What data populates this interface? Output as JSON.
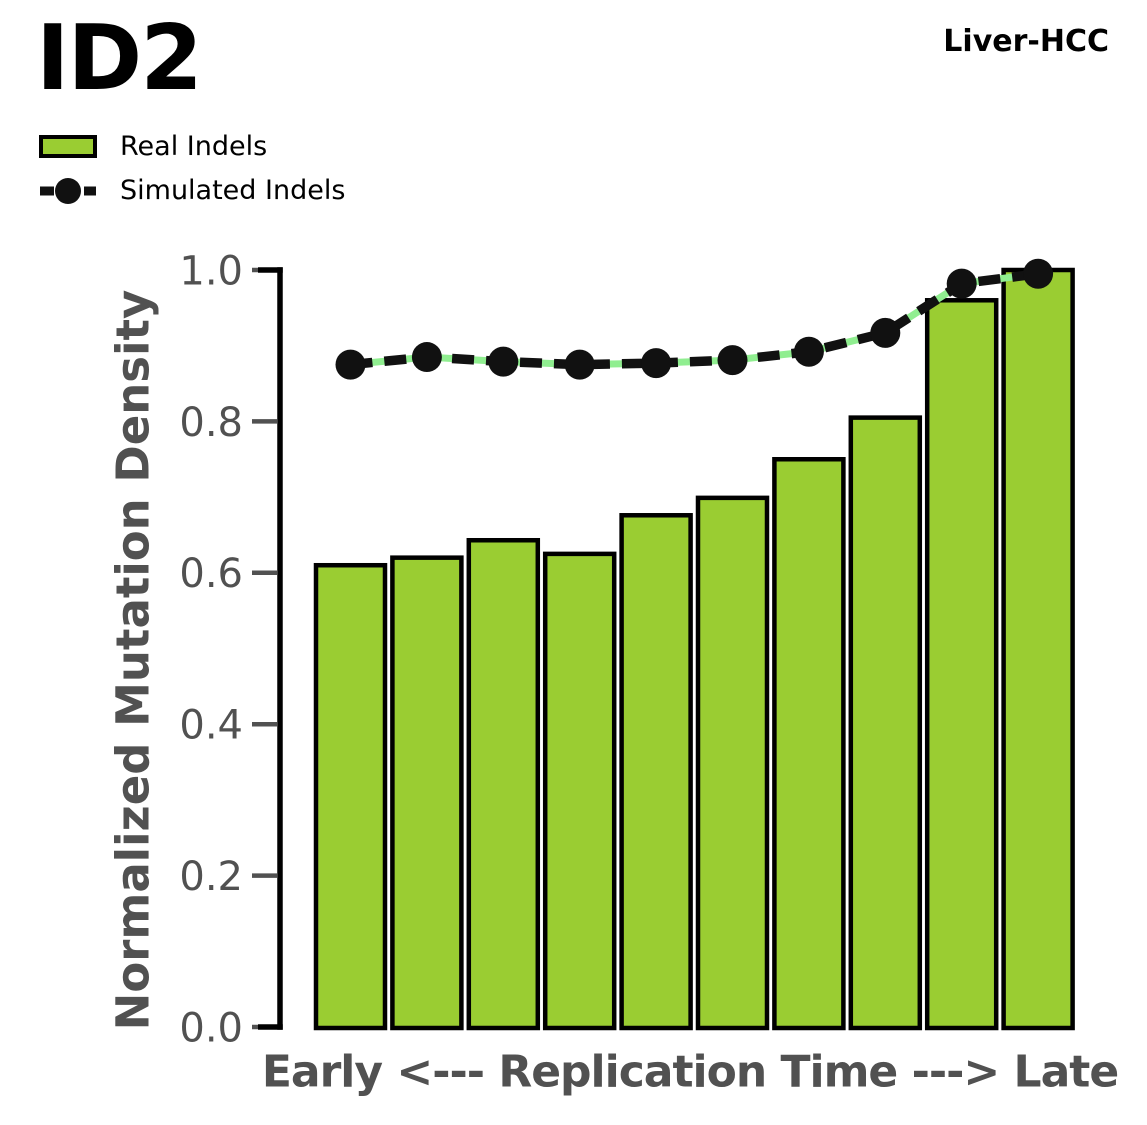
{
  "title": "ID2",
  "corner_label": "Liver-HCC",
  "legend": {
    "items": [
      {
        "label": "Real Indels"
      },
      {
        "label": "Simulated Indels"
      }
    ]
  },
  "colors": {
    "bar_fill": "#9ACD32",
    "bar_edge": "#000000",
    "line_color": "#111111",
    "line_gap_dash": "#90EE90",
    "marker_color": "#111111",
    "axis_text": "#515151",
    "spine_color": "#000000",
    "background": "#FFFFFF",
    "title_text": "#000000"
  },
  "chart_data": {
    "type": "bar",
    "title": "ID2",
    "subtitle": "Liver-HCC",
    "x": [
      1,
      2,
      3,
      4,
      5,
      6,
      7,
      8,
      9,
      10
    ],
    "series": [
      {
        "name": "Real Indels",
        "type": "bar",
        "values": [
          0.61,
          0.62,
          0.643,
          0.625,
          0.676,
          0.699,
          0.75,
          0.805,
          0.96,
          1.0
        ]
      },
      {
        "name": "Simulated Indels",
        "type": "line",
        "values": [
          0.875,
          0.885,
          0.879,
          0.875,
          0.877,
          0.881,
          0.892,
          0.917,
          0.982,
          0.995
        ]
      }
    ],
    "xlabel": "Early <--- Replication Time ---> Late",
    "ylabel": "Normalized Mutation Density",
    "ylim": [
      0.0,
      1.0
    ],
    "yticks": [
      "0.0",
      "0.2",
      "0.4",
      "0.6",
      "0.8",
      "1.0"
    ],
    "grid": false,
    "legend_position": "top-left"
  }
}
